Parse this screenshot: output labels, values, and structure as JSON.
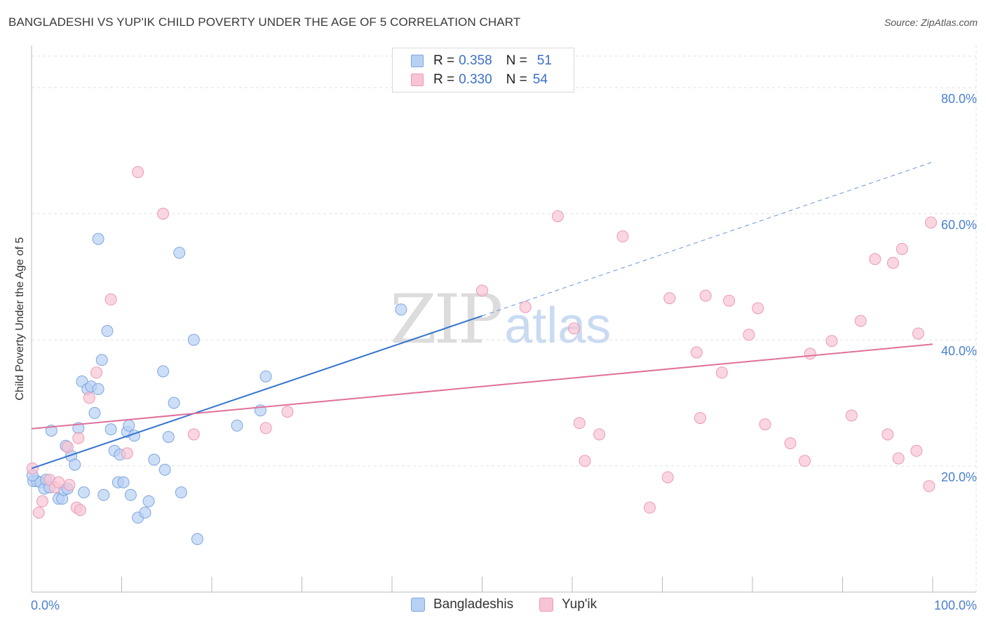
{
  "title": "BANGLADESHI VS YUP'IK CHILD POVERTY UNDER THE AGE OF 5 CORRELATION CHART",
  "source": "Source: ZipAtlas.com",
  "watermark": {
    "zip": "ZIP",
    "atlas": "atlas"
  },
  "legend": {
    "rows": [
      {
        "r_label": "R =",
        "r_value": "0.358",
        "n_label": "N =",
        "n_value": "51"
      },
      {
        "r_label": "R =",
        "r_value": "0.330",
        "n_label": "N =",
        "n_value": "54"
      }
    ]
  },
  "colors": {
    "blue_fill": "#b8d0f3",
    "blue_stroke": "#7fa6df",
    "blue_line": "#3373d0",
    "pink_fill": "#f8c4d4",
    "pink_stroke": "#eb9ab4",
    "pink_line": "#e0709a",
    "tick_text": "#4a7fd0",
    "grid": "#e0e0e0"
  },
  "chart_data": {
    "type": "scatter",
    "ylabel": "Child Poverty Under the Age of 5",
    "xlim": [
      0,
      100
    ],
    "ylim": [
      0,
      85
    ],
    "x_ticks": [
      "0.0%",
      "100.0%"
    ],
    "y_ticks": [
      {
        "value": 20,
        "label": "20.0%"
      },
      {
        "value": 40,
        "label": "40.0%"
      },
      {
        "value": 60,
        "label": "60.0%"
      },
      {
        "value": 80,
        "label": "80.0%"
      }
    ],
    "grid": true,
    "legend_position": "top-center",
    "series": [
      {
        "name": "Bangladeshis",
        "color": "blue",
        "trend": {
          "x0": 0,
          "y0": 19.6,
          "x1": 50,
          "y1": 43.8,
          "dashed_to_x": 100,
          "dashed_to_y": 68.2
        },
        "points": [
          [
            0.2,
            17.6
          ],
          [
            0.6,
            17.6
          ],
          [
            1.0,
            17.4
          ],
          [
            1.4,
            16.4
          ],
          [
            1.6,
            17.8
          ],
          [
            2.0,
            16.6
          ],
          [
            2.2,
            25.6
          ],
          [
            3.0,
            14.8
          ],
          [
            3.4,
            14.8
          ],
          [
            3.6,
            16.2
          ],
          [
            3.8,
            23.2
          ],
          [
            4.0,
            16.4
          ],
          [
            4.4,
            21.6
          ],
          [
            4.8,
            20.2
          ],
          [
            5.2,
            26.0
          ],
          [
            5.6,
            33.4
          ],
          [
            5.8,
            15.8
          ],
          [
            6.2,
            32.2
          ],
          [
            6.6,
            32.6
          ],
          [
            7.0,
            28.4
          ],
          [
            7.4,
            32.2
          ],
          [
            7.4,
            56.0
          ],
          [
            7.8,
            36.8
          ],
          [
            8.0,
            15.4
          ],
          [
            8.4,
            41.4
          ],
          [
            8.8,
            25.8
          ],
          [
            9.2,
            22.4
          ],
          [
            9.6,
            17.4
          ],
          [
            9.8,
            21.8
          ],
          [
            10.2,
            17.4
          ],
          [
            10.6,
            25.4
          ],
          [
            10.8,
            26.4
          ],
          [
            11.0,
            15.4
          ],
          [
            11.4,
            24.8
          ],
          [
            11.8,
            11.8
          ],
          [
            12.6,
            12.6
          ],
          [
            13.0,
            14.4
          ],
          [
            13.6,
            21.0
          ],
          [
            14.6,
            35.0
          ],
          [
            14.8,
            19.4
          ],
          [
            15.2,
            24.6
          ],
          [
            15.8,
            30.0
          ],
          [
            16.4,
            53.8
          ],
          [
            16.6,
            15.8
          ],
          [
            18.0,
            40.0
          ],
          [
            18.4,
            8.4
          ],
          [
            22.8,
            26.4
          ],
          [
            25.4,
            28.8
          ],
          [
            26.0,
            34.2
          ],
          [
            41.0,
            44.8
          ],
          [
            0.1,
            18.5
          ]
        ]
      },
      {
        "name": "Yup'ik",
        "color": "pink",
        "trend": {
          "x0": 0,
          "y0": 25.9,
          "x1": 100,
          "y1": 39.3
        },
        "points": [
          [
            0.1,
            19.6
          ],
          [
            0.8,
            12.6
          ],
          [
            1.2,
            14.4
          ],
          [
            2.0,
            17.8
          ],
          [
            2.6,
            16.6
          ],
          [
            3.0,
            17.4
          ],
          [
            4.0,
            23.0
          ],
          [
            4.2,
            17.0
          ],
          [
            5.0,
            13.4
          ],
          [
            5.2,
            24.4
          ],
          [
            6.4,
            30.8
          ],
          [
            7.2,
            34.8
          ],
          [
            8.8,
            46.4
          ],
          [
            10.6,
            22.0
          ],
          [
            11.8,
            66.6
          ],
          [
            14.6,
            60.0
          ],
          [
            18.0,
            25.0
          ],
          [
            26.0,
            26.0
          ],
          [
            28.4,
            28.6
          ],
          [
            50.0,
            47.8
          ],
          [
            54.8,
            45.2
          ],
          [
            58.4,
            59.6
          ],
          [
            60.2,
            41.8
          ],
          [
            60.8,
            26.8
          ],
          [
            61.4,
            20.8
          ],
          [
            63.0,
            25.0
          ],
          [
            65.6,
            56.4
          ],
          [
            68.6,
            13.4
          ],
          [
            70.6,
            18.2
          ],
          [
            70.8,
            46.6
          ],
          [
            73.8,
            38.0
          ],
          [
            74.2,
            27.6
          ],
          [
            74.8,
            47.0
          ],
          [
            76.6,
            34.8
          ],
          [
            77.4,
            46.2
          ],
          [
            79.6,
            40.8
          ],
          [
            80.6,
            45.0
          ],
          [
            81.4,
            26.6
          ],
          [
            84.2,
            23.6
          ],
          [
            85.8,
            20.8
          ],
          [
            86.4,
            37.8
          ],
          [
            88.8,
            39.8
          ],
          [
            91.0,
            28.0
          ],
          [
            92.0,
            43.0
          ],
          [
            93.6,
            52.8
          ],
          [
            95.0,
            25.0
          ],
          [
            95.6,
            52.2
          ],
          [
            96.2,
            21.2
          ],
          [
            96.6,
            54.4
          ],
          [
            98.2,
            22.4
          ],
          [
            98.4,
            41.0
          ],
          [
            99.6,
            16.8
          ],
          [
            99.8,
            58.6
          ],
          [
            5.4,
            13.0
          ]
        ]
      }
    ]
  }
}
